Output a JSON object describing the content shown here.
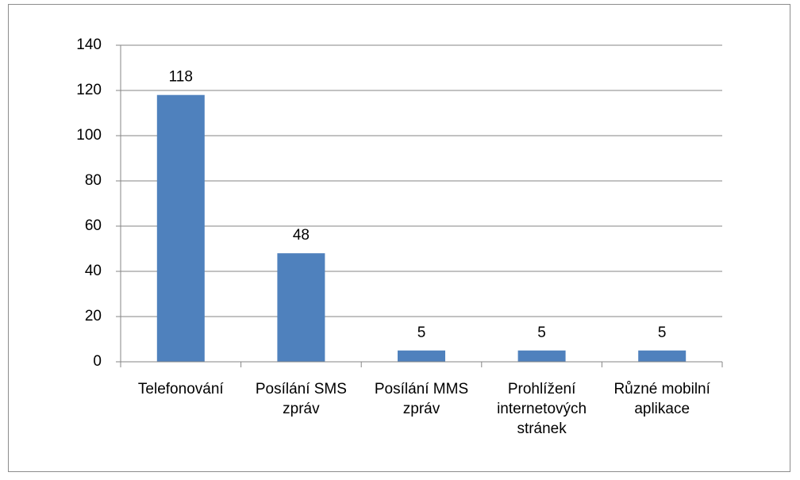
{
  "chart_data": {
    "type": "bar",
    "categories": [
      "Telefonování",
      "Posílání SMS zpráv",
      "Posílání MMS zpráv",
      "Prohlížení internetových stránek",
      "Různé mobilní aplikace"
    ],
    "values": [
      118,
      48,
      5,
      5,
      5
    ],
    "color": "#4f81bd",
    "ylim": [
      0,
      140
    ],
    "yticks": [
      0,
      20,
      40,
      60,
      80,
      100,
      120,
      140
    ],
    "grid": true
  }
}
